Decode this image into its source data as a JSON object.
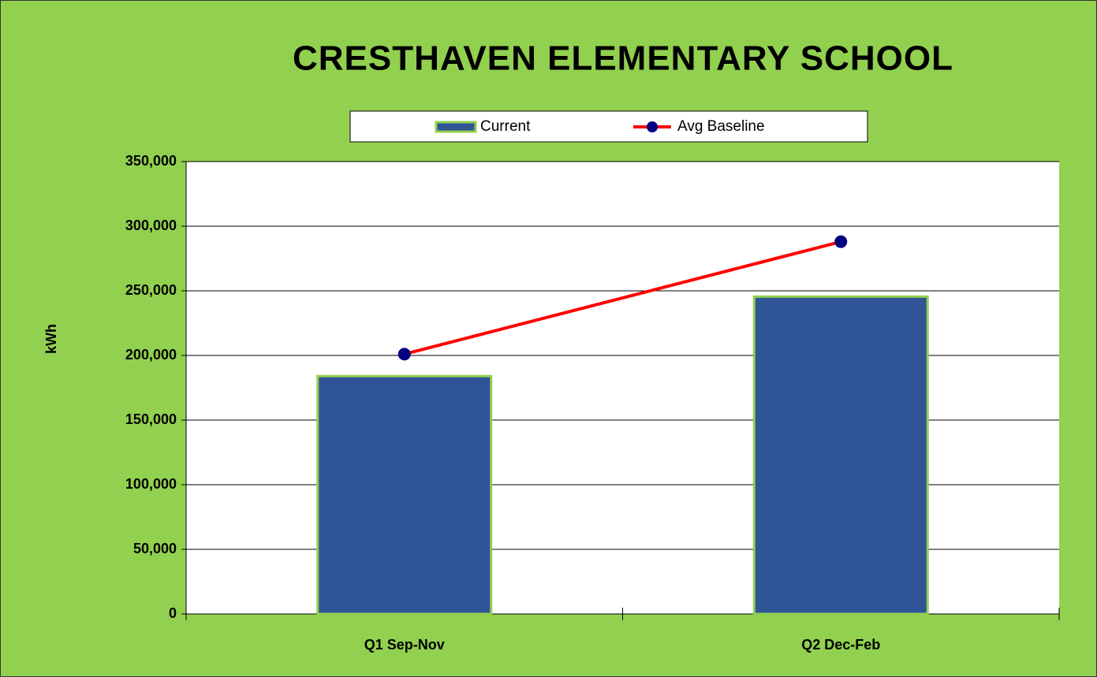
{
  "chart_data": {
    "type": "bar",
    "title": "CRESTHAVEN ELEMENTARY SCHOOL",
    "y_label": "kWh",
    "categories": [
      "Q1 Sep-Nov",
      "Q2 Dec-Feb"
    ],
    "series": [
      {
        "name": "Current",
        "type": "bar",
        "color": "#2f5597",
        "values": [
          184000,
          245500
        ]
      },
      {
        "name": "Avg Baseline",
        "type": "line",
        "color": "#ff0000",
        "marker_color": "#000080",
        "values": [
          201000,
          288000
        ]
      }
    ],
    "ylim": [
      0,
      350000
    ],
    "yticks": [
      0,
      {
        "value": 50000,
        "label": "50,000"
      },
      {
        "value": 100000,
        "label": "100,000"
      },
      {
        "value": 150000,
        "label": "150,000"
      },
      {
        "value": 200000,
        "label": "200,000"
      },
      {
        "value": 250000,
        "label": "250,000"
      },
      {
        "value": 300000,
        "label": "300,000"
      },
      {
        "value": 350000,
        "label": "350,000"
      }
    ],
    "grid": true,
    "background": "#92d050"
  }
}
